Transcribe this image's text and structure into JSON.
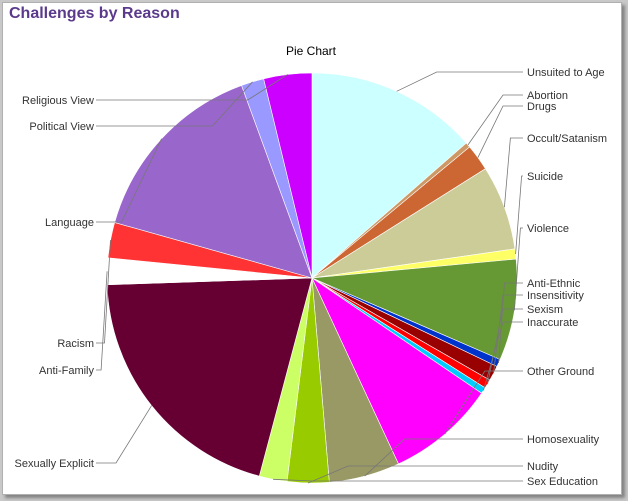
{
  "page_heading": "Challenges by Reason",
  "chart_data": {
    "type": "pie",
    "title": "Pie Chart",
    "slices": [
      {
        "label": "Unsuited to Age",
        "value": 13.6,
        "color": "#ccffff",
        "side": "right"
      },
      {
        "label": "Abortion",
        "value": 0.4,
        "color": "#cc9966",
        "side": "right"
      },
      {
        "label": "Drugs",
        "value": 2.1,
        "color": "#cc6633",
        "side": "right"
      },
      {
        "label": "Occult/Satanism",
        "value": 6.7,
        "color": "#cccc99",
        "side": "right"
      },
      {
        "label": "Suicide",
        "value": 0.8,
        "color": "#ffff66",
        "side": "right"
      },
      {
        "label": "Violence",
        "value": 8.0,
        "color": "#669933",
        "side": "right"
      },
      {
        "label": "Anti-Ethnic",
        "value": 0.6,
        "color": "#0033cc",
        "side": "right"
      },
      {
        "label": "Insensitivity",
        "value": 1.2,
        "color": "#990000",
        "side": "right"
      },
      {
        "label": "Sexism",
        "value": 0.7,
        "color": "#ff0000",
        "side": "right"
      },
      {
        "label": "Inaccurate",
        "value": 0.5,
        "color": "#00ccff",
        "side": "right"
      },
      {
        "label": "Other Ground",
        "value": 8.6,
        "color": "#ff00ff",
        "side": "right"
      },
      {
        "label": "Homosexuality",
        "value": 5.6,
        "color": "#999966",
        "side": "right"
      },
      {
        "label": "Nudity",
        "value": 3.3,
        "color": "#99cc00",
        "side": "right"
      },
      {
        "label": "Sex Education",
        "value": 2.2,
        "color": "#ccff66",
        "side": "right"
      },
      {
        "label": "Sexually Explicit",
        "value": 20.4,
        "color": "#660033",
        "side": "left"
      },
      {
        "label": "Anti-Family",
        "value": 2.1,
        "color": "#ffffff",
        "side": "left"
      },
      {
        "label": "Racism",
        "value": 2.8,
        "color": "#ff3333",
        "side": "left"
      },
      {
        "label": "Language",
        "value": 15.1,
        "color": "#9966cc",
        "side": "left"
      },
      {
        "label": "Political View",
        "value": 1.8,
        "color": "#9999ff",
        "side": "left"
      },
      {
        "label": "Religious View",
        "value": 3.8,
        "color": "#cc00ff",
        "side": "left"
      }
    ]
  }
}
